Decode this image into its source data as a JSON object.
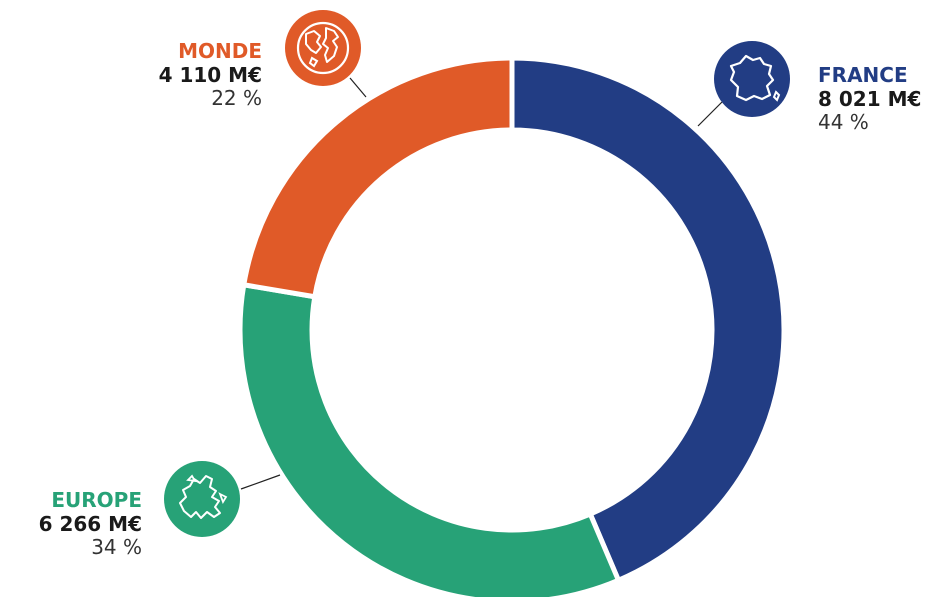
{
  "chart_data": {
    "type": "pie",
    "title": "",
    "donut": true,
    "categories": [
      "FRANCE",
      "EUROPE",
      "MONDE"
    ],
    "values": [
      8021,
      6266,
      4110
    ],
    "amount_labels": [
      "8 021 M€",
      "6 266 M€",
      "4 110 M€"
    ],
    "percent_labels": [
      "44 %",
      "34 %",
      "22 %"
    ],
    "colors": [
      "#223d84",
      "#27a277",
      "#e05a28"
    ],
    "start_angle_deg": 0,
    "direction": "clockwise"
  },
  "icons": {
    "france": "france-map-icon",
    "europe": "europe-map-icon",
    "monde": "globe-icon"
  }
}
